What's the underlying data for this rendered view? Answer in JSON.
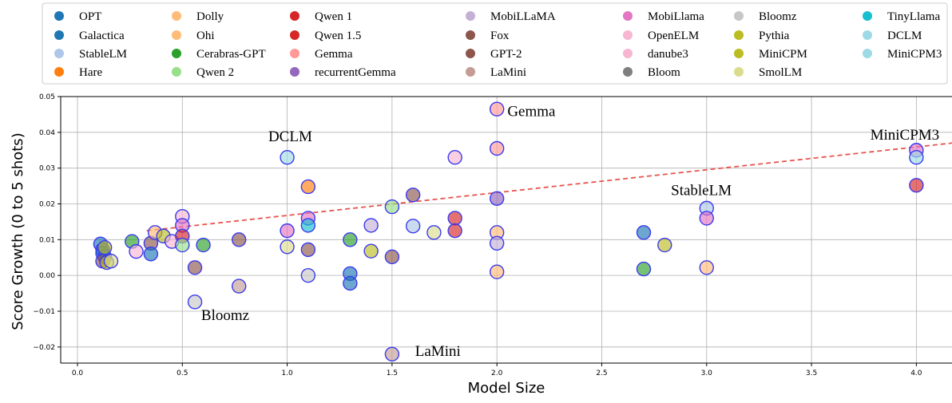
{
  "chart_data": {
    "type": "scatter",
    "xlabel": "Model Size",
    "ylabel": "Score Growth (0 to 5 shots)",
    "xlim": [
      -0.08,
      4.17
    ],
    "ylim": [
      -0.0245,
      0.05
    ],
    "x_ticks": [
      0.0,
      0.5,
      1.0,
      1.5,
      2.0,
      2.5,
      3.0,
      3.5,
      4.0
    ],
    "x_tick_labels": [
      "0.0",
      "0.5",
      "1.0",
      "1.5",
      "2.0",
      "2.5",
      "3.0",
      "3.5",
      "4.0"
    ],
    "y_ticks": [
      -0.02,
      -0.01,
      0.0,
      0.01,
      0.02,
      0.03,
      0.04,
      0.05
    ],
    "y_tick_labels": [
      "−0.02",
      "−0.01",
      "0.00",
      "0.01",
      "0.02",
      "0.03",
      "0.04",
      "0.05"
    ],
    "grid": true,
    "legend_position": "top",
    "legend": [
      {
        "name": "OPT",
        "color": "#1f77b4"
      },
      {
        "name": "Galactica",
        "color": "#1f77b4"
      },
      {
        "name": "StableLM",
        "color": "#aec7e8"
      },
      {
        "name": "Hare",
        "color": "#ff7f0e"
      },
      {
        "name": "Dolly",
        "color": "#ffbb78"
      },
      {
        "name": "Ohi",
        "color": "#ffbb78"
      },
      {
        "name": "Cerabras-GPT",
        "color": "#2ca02c"
      },
      {
        "name": "Qwen 2",
        "color": "#98df8a"
      },
      {
        "name": "Qwen 1",
        "color": "#d62728"
      },
      {
        "name": "Qwen 1.5",
        "color": "#d62728"
      },
      {
        "name": "Gemma",
        "color": "#ff9896"
      },
      {
        "name": "recurrentGemma",
        "color": "#9467bd"
      },
      {
        "name": "MobiLLaMA",
        "color": "#c5b0d5"
      },
      {
        "name": "Fox",
        "color": "#8c564b"
      },
      {
        "name": "GPT-2",
        "color": "#8c564b"
      },
      {
        "name": "LaMini",
        "color": "#c49c94"
      },
      {
        "name": "MobiLlama",
        "color": "#e377c2"
      },
      {
        "name": "OpenELM",
        "color": "#f7b6d2"
      },
      {
        "name": "danube3",
        "color": "#f7b6d2"
      },
      {
        "name": "Bloom",
        "color": "#7f7f7f"
      },
      {
        "name": "Bloomz",
        "color": "#c7c7c7"
      },
      {
        "name": "Pythia",
        "color": "#bcbd22"
      },
      {
        "name": "MiniCPM",
        "color": "#bcbd22"
      },
      {
        "name": "SmolLM",
        "color": "#dbdb8d"
      },
      {
        "name": "TinyLlama",
        "color": "#17becf"
      },
      {
        "name": "DCLM",
        "color": "#9edae5"
      },
      {
        "name": "MiniCPM3",
        "color": "#9edae5"
      }
    ],
    "annotations": [
      {
        "text": "Gemma",
        "x": 2.05,
        "y": 0.0445
      },
      {
        "text": "DCLM",
        "x": 0.91,
        "y": 0.0375
      },
      {
        "text": "MiniCPM3",
        "x": 3.78,
        "y": 0.038
      },
      {
        "text": "StableLM",
        "x": 2.83,
        "y": 0.0225
      },
      {
        "text": "Bloomz",
        "x": 0.59,
        "y": -0.0125
      },
      {
        "text": "LaMini",
        "x": 1.61,
        "y": -0.0225
      }
    ],
    "trend_line": {
      "x": [
        0.33,
        4.17
      ],
      "y": [
        0.0125,
        0.037
      ],
      "color": "#e8544e"
    },
    "points": [
      {
        "x": 0.11,
        "y": 0.0088,
        "color": "#1f77b4"
      },
      {
        "x": 0.12,
        "y": 0.0072,
        "color": "#1f77b4"
      },
      {
        "x": 0.12,
        "y": 0.0062,
        "color": "#1f77b4"
      },
      {
        "x": 0.13,
        "y": 0.0052,
        "color": "#1f77b4"
      },
      {
        "x": 0.12,
        "y": 0.004,
        "color": "#8c564b"
      },
      {
        "x": 0.13,
        "y": 0.0078,
        "color": "#bcbd22"
      },
      {
        "x": 0.14,
        "y": 0.0036,
        "color": "#bcbd22"
      },
      {
        "x": 0.16,
        "y": 0.004,
        "color": "#dbdb8d"
      },
      {
        "x": 0.26,
        "y": 0.0095,
        "color": "#2ca02c"
      },
      {
        "x": 0.28,
        "y": 0.0067,
        "color": "#f7b6d2"
      },
      {
        "x": 0.35,
        "y": 0.009,
        "color": "#8c564b"
      },
      {
        "x": 0.35,
        "y": 0.006,
        "color": "#1f77b4"
      },
      {
        "x": 0.37,
        "y": 0.012,
        "color": "#ffbb78"
      },
      {
        "x": 0.41,
        "y": 0.011,
        "color": "#bcbd22"
      },
      {
        "x": 0.45,
        "y": 0.0095,
        "color": "#f7b6d2"
      },
      {
        "x": 0.5,
        "y": 0.0165,
        "color": "#f7b6d2"
      },
      {
        "x": 0.5,
        "y": 0.014,
        "color": "#e377c2"
      },
      {
        "x": 0.5,
        "y": 0.011,
        "color": "#d62728"
      },
      {
        "x": 0.5,
        "y": 0.0085,
        "color": "#98df8a"
      },
      {
        "x": 0.56,
        "y": 0.0022,
        "color": "#8c564b"
      },
      {
        "x": 0.56,
        "y": -0.0074,
        "color": "#c7c7c7"
      },
      {
        "x": 0.6,
        "y": 0.0085,
        "color": "#2ca02c"
      },
      {
        "x": 0.77,
        "y": 0.01,
        "color": "#8c564b"
      },
      {
        "x": 0.77,
        "y": -0.003,
        "color": "#c49c94"
      },
      {
        "x": 1.0,
        "y": 0.033,
        "color": "#9edae5"
      },
      {
        "x": 1.0,
        "y": 0.0125,
        "color": "#e377c2"
      },
      {
        "x": 1.0,
        "y": 0.008,
        "color": "#dbdb8d"
      },
      {
        "x": 1.1,
        "y": 0.0248,
        "color": "#ff7f0e"
      },
      {
        "x": 1.1,
        "y": 0.016,
        "color": "#e377c2"
      },
      {
        "x": 1.1,
        "y": 0.014,
        "color": "#17becf"
      },
      {
        "x": 1.1,
        "y": 0.0072,
        "color": "#8c564b"
      },
      {
        "x": 1.1,
        "y": 0.0,
        "color": "#c7c7c7"
      },
      {
        "x": 1.3,
        "y": 0.01,
        "color": "#2ca02c"
      },
      {
        "x": 1.3,
        "y": 0.0005,
        "color": "#1f77b4"
      },
      {
        "x": 1.3,
        "y": -0.0022,
        "color": "#1f77b4"
      },
      {
        "x": 1.4,
        "y": 0.014,
        "color": "#c5b0d5"
      },
      {
        "x": 1.4,
        "y": 0.0068,
        "color": "#bcbd22"
      },
      {
        "x": 1.5,
        "y": 0.0192,
        "color": "#98df8a"
      },
      {
        "x": 1.5,
        "y": 0.0052,
        "color": "#8c564b"
      },
      {
        "x": 1.5,
        "y": -0.022,
        "color": "#c49c94"
      },
      {
        "x": 1.6,
        "y": 0.0225,
        "color": "#8c564b"
      },
      {
        "x": 1.6,
        "y": 0.0138,
        "color": "#aec7e8"
      },
      {
        "x": 1.7,
        "y": 0.012,
        "color": "#dbdb8d"
      },
      {
        "x": 1.8,
        "y": 0.033,
        "color": "#f7b6d2"
      },
      {
        "x": 1.8,
        "y": 0.016,
        "color": "#d62728"
      },
      {
        "x": 1.8,
        "y": 0.0125,
        "color": "#d62728"
      },
      {
        "x": 2.0,
        "y": 0.0465,
        "color": "#ff9896"
      },
      {
        "x": 2.0,
        "y": 0.0355,
        "color": "#ff9896"
      },
      {
        "x": 2.0,
        "y": 0.0215,
        "color": "#9467bd"
      },
      {
        "x": 2.0,
        "y": 0.012,
        "color": "#ffbb78"
      },
      {
        "x": 2.0,
        "y": 0.009,
        "color": "#c5b0d5"
      },
      {
        "x": 2.0,
        "y": 0.001,
        "color": "#ffbb78"
      },
      {
        "x": 2.7,
        "y": 0.012,
        "color": "#1f77b4"
      },
      {
        "x": 2.7,
        "y": 0.0018,
        "color": "#2ca02c"
      },
      {
        "x": 2.8,
        "y": 0.0085,
        "color": "#bcbd22"
      },
      {
        "x": 3.0,
        "y": 0.0188,
        "color": "#aec7e8"
      },
      {
        "x": 3.0,
        "y": 0.016,
        "color": "#e377c2"
      },
      {
        "x": 3.0,
        "y": 0.0022,
        "color": "#ffbb78"
      },
      {
        "x": 4.0,
        "y": 0.035,
        "color": "#e377c2"
      },
      {
        "x": 4.0,
        "y": 0.033,
        "color": "#9edae5"
      },
      {
        "x": 4.0,
        "y": 0.0252,
        "color": "#d62728"
      }
    ]
  }
}
